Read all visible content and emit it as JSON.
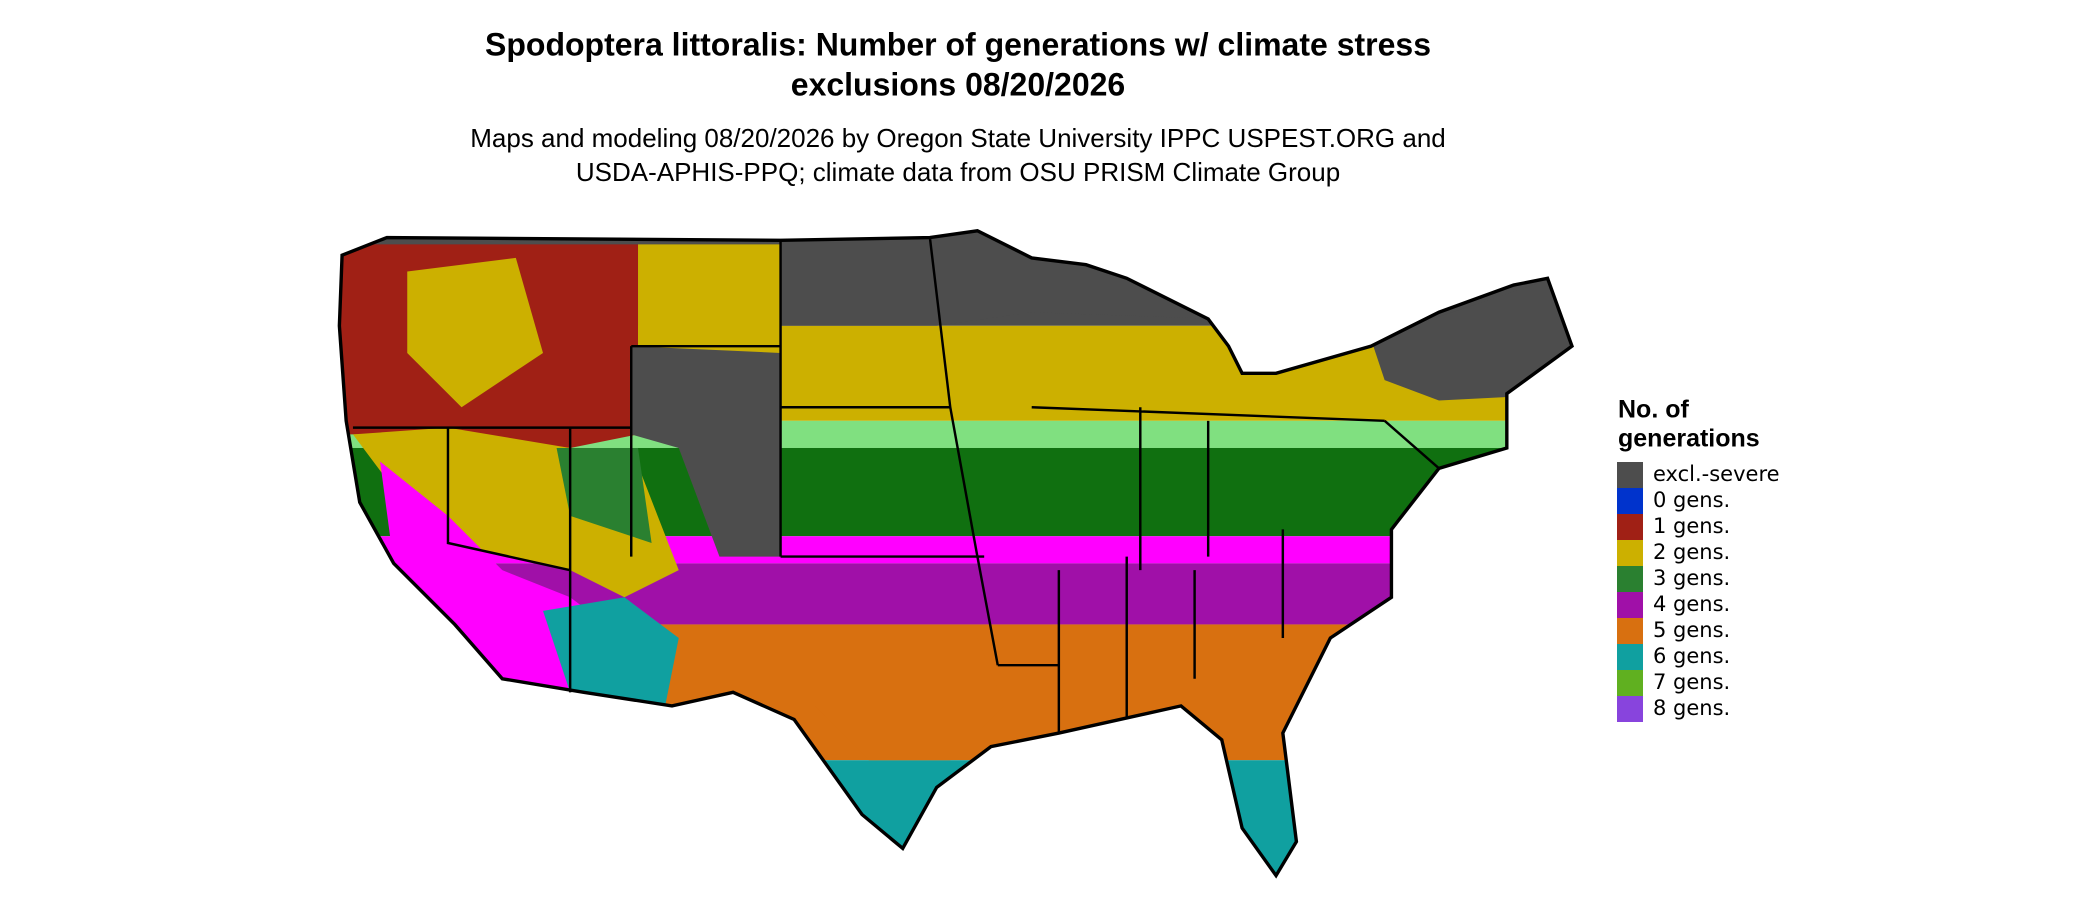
{
  "title": [
    "Spodoptera littoralis: Number of generations w/ climate stress",
    "exclusions 08/20/2026"
  ],
  "subtitle": [
    "Maps and modeling 08/20/2026 by Oregon State University IPPC USPEST.ORG and",
    "USDA-APHIS-PPQ; climate data from OSU PRISM Climate Group"
  ],
  "legend": {
    "title": [
      "No. of",
      "generations"
    ],
    "items": [
      {
        "label": "excl.-severe",
        "color": "#4d4d4d"
      },
      {
        "label": "0 gens.",
        "color": "#0033cc"
      },
      {
        "label": "1 gens.",
        "color": "#a02015"
      },
      {
        "label": "2 gens.",
        "color": "#ccb000"
      },
      {
        "label": "3 gens.",
        "color": "#2a8030"
      },
      {
        "label": "4 gens.",
        "color": "#a010a8"
      },
      {
        "label": "5 gens.",
        "color": "#d87010"
      },
      {
        "label": "6 gens.",
        "color": "#10a0a0"
      },
      {
        "label": "7 gens.",
        "color": "#60b020"
      },
      {
        "label": "8 gens.",
        "color": "#8844dd"
      }
    ]
  }
}
